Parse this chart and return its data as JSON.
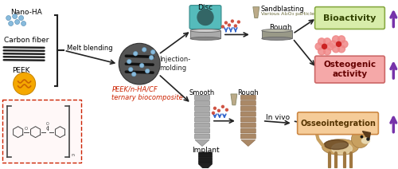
{
  "bg_color": "#ffffff",
  "labels": {
    "nano_ha": "Nano-HA",
    "carbon_fiber": "Carbon fiber",
    "peek": "PEEK",
    "melt_blending": "Melt blending",
    "injection_molding": "Injection-\nmolding",
    "peek_composite": "PEEK/n-HA/CF\nternary biocomposite",
    "disc": "Disc",
    "implant": "Implant",
    "sandblasting": "Sandblasting",
    "al2o3": "Various Al₂O₃ particles",
    "smooth": "Smooth",
    "rough": "Rough",
    "in_vivo": "In vivo",
    "bioactivity": "Bioactivity",
    "osteogenic": "Osteogenic\nactivity",
    "osseointegration": "Osseointegration"
  },
  "box_colors": {
    "bioactivity": "#d8edaa",
    "osteogenic": "#f5a8a8",
    "osseointegration": "#f5cc99"
  },
  "arrow_color": "#222222",
  "blue_arrow_color": "#3366cc",
  "purple_arrow_color": "#7733aa",
  "red_label_color": "#cc2200",
  "peek_circle_color": "#f5a800",
  "nano_ha_color": "#88bbdd",
  "carbon_fiber_color": "#222222",
  "disc_color": "#aaaaaa",
  "disc_top_color": "#55bbbb",
  "disc_dark_color": "#777777",
  "implant_dark_color": "#333333",
  "implant_rough_color": "#aa8866",
  "implant_smooth_color": "#aaaaaa",
  "blend_ellipse_color": "#888888",
  "dashed_box_color": "#cc2200"
}
